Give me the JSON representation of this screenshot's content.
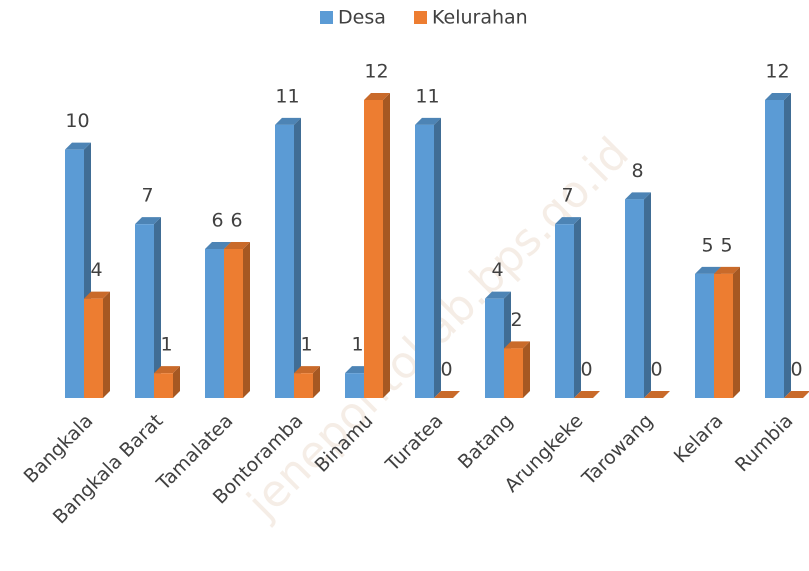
{
  "chart_data": {
    "type": "bar3d",
    "categories": [
      "Bangkala",
      "Bangkala Barat",
      "Tamalatea",
      "Bontoramba",
      "Binamu",
      "Turatea",
      "Batang",
      "Arungkeke",
      "Tarowang",
      "Kelara",
      "Rumbia"
    ],
    "series": [
      {
        "name": "Desa",
        "color": "#5b9bd5",
        "values": [
          10,
          7,
          6,
          11,
          1,
          11,
          4,
          7,
          8,
          5,
          12
        ]
      },
      {
        "name": "Kelurahan",
        "color": "#ed7d31",
        "values": [
          4,
          1,
          6,
          1,
          12,
          0,
          2,
          0,
          0,
          5,
          0
        ]
      }
    ],
    "legend": "top",
    "watermark": "jenepontokab.bps.go.id"
  }
}
